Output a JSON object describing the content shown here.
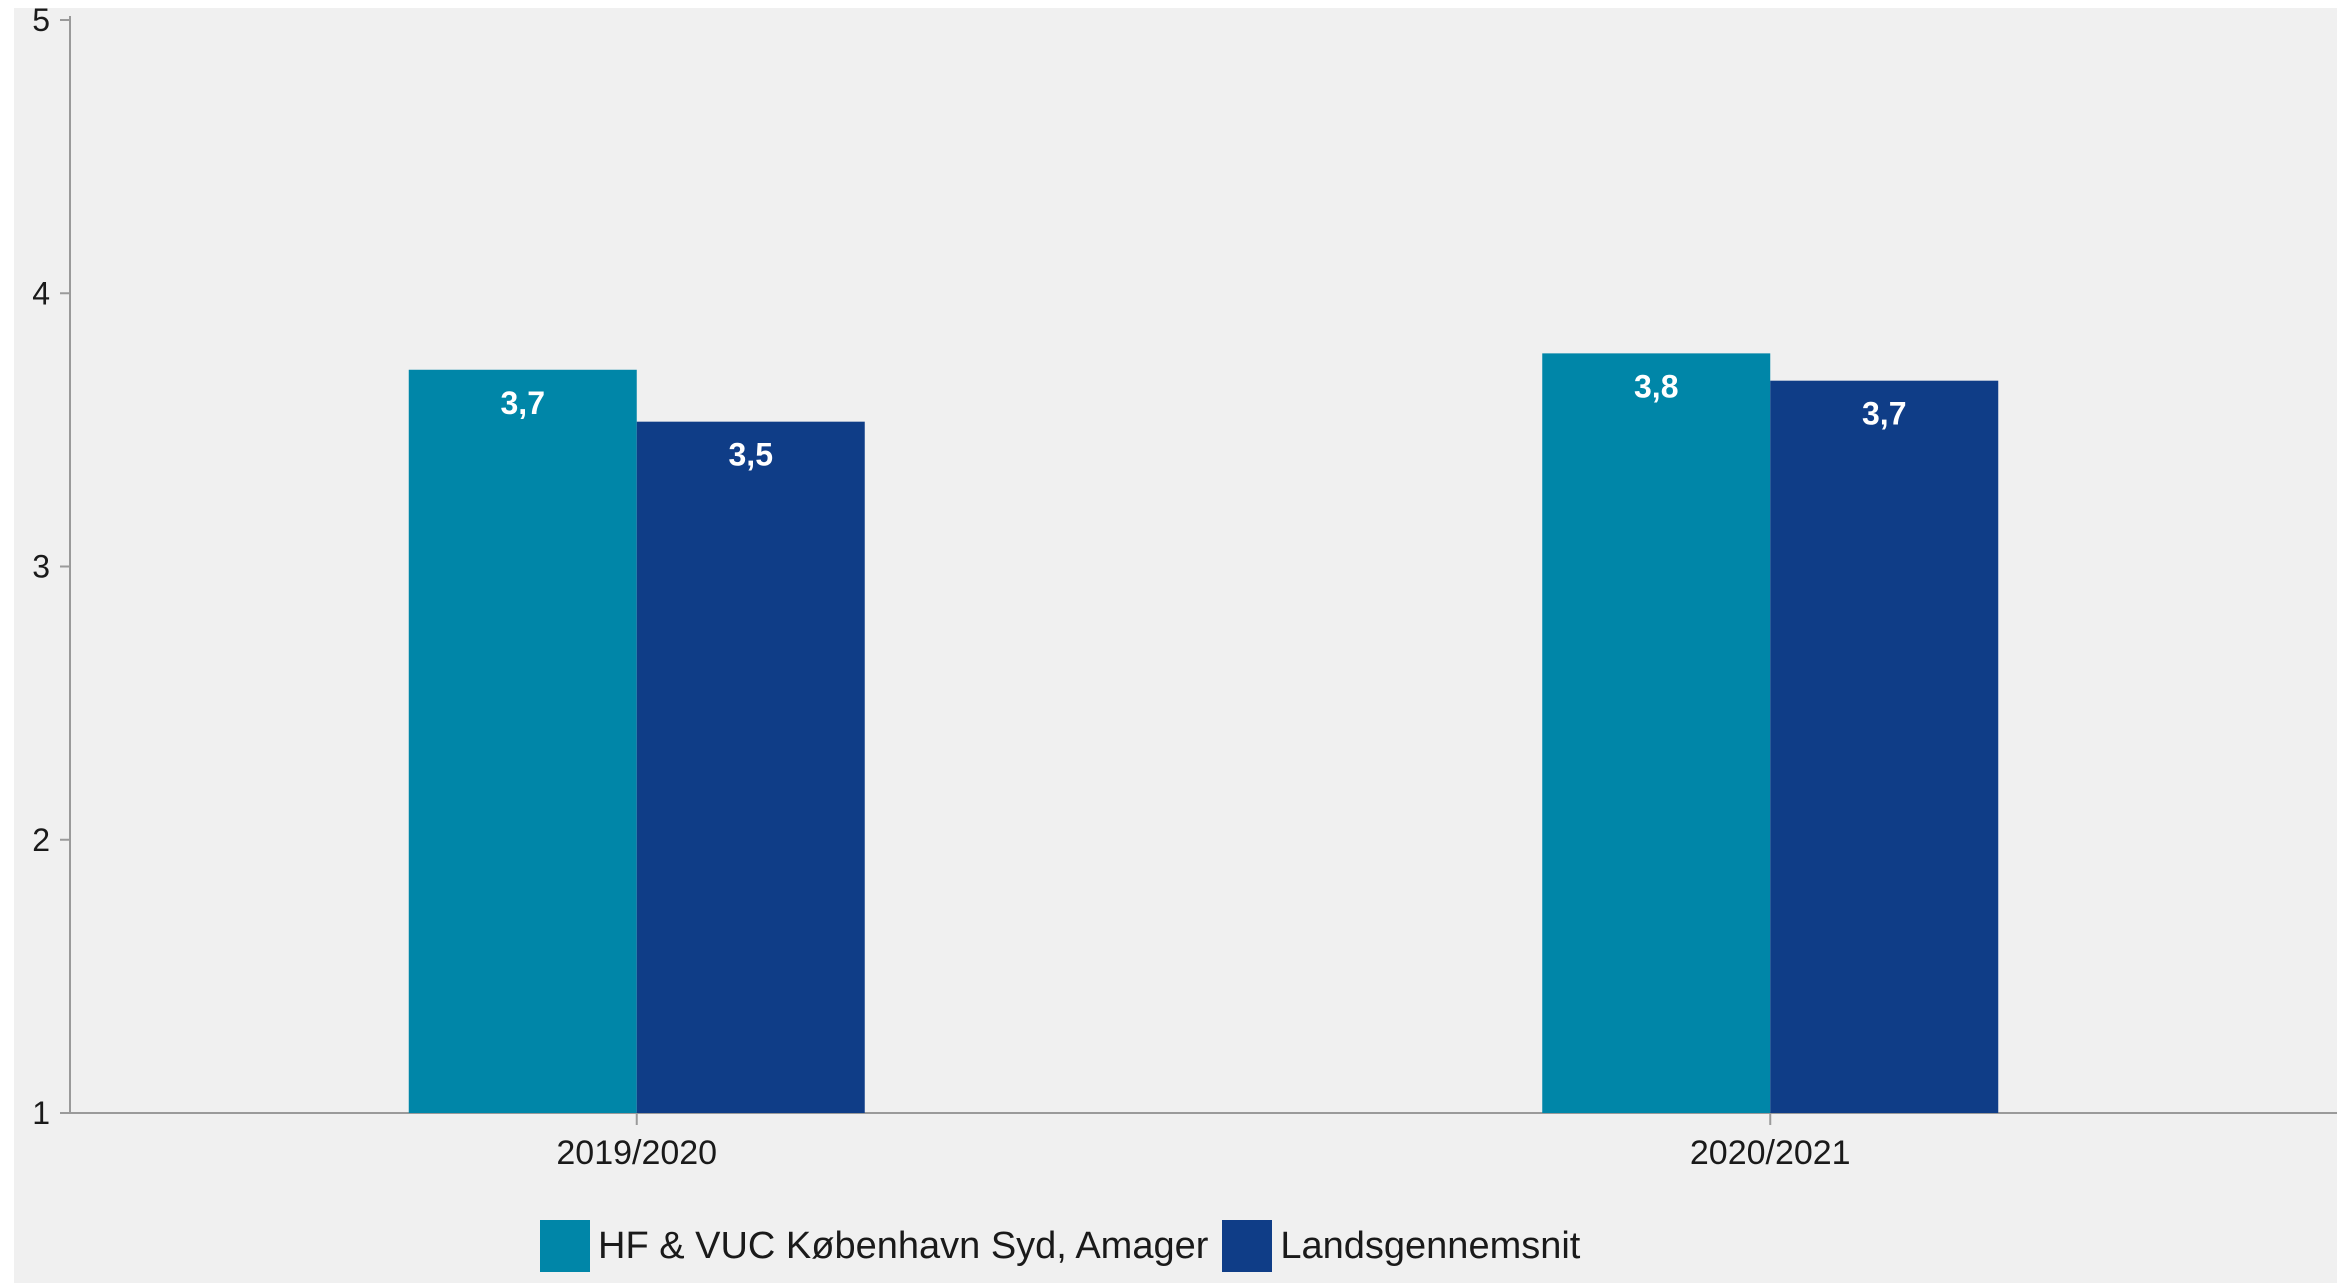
{
  "chart_data": {
    "type": "bar",
    "categories": [
      "2019/2020",
      "2020/2021"
    ],
    "series": [
      {
        "name": "HF & VUC København Syd, Amager",
        "color": "#0086A8",
        "values": [
          3.72,
          3.78
        ],
        "labels": [
          "3,7",
          "3,8"
        ]
      },
      {
        "name": "Landsgennemsnit",
        "color": "#0F3D87",
        "values": [
          3.53,
          3.68
        ],
        "labels": [
          "3,5",
          "3,7"
        ]
      }
    ],
    "ylim": [
      1,
      5
    ],
    "yticks": [
      "1",
      "2",
      "3",
      "4",
      "5"
    ],
    "title": "",
    "xlabel": "",
    "ylabel": "",
    "grid": false,
    "legend": "bottom-left",
    "background": "#F0F0F0"
  }
}
